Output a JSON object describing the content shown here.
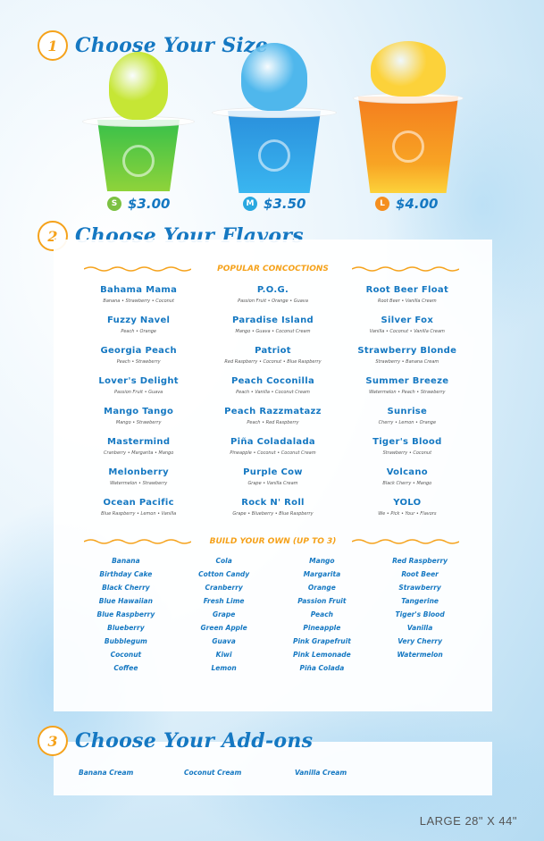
{
  "colors": {
    "accent": "#f5a21b",
    "brand": "#1578c2"
  },
  "sections": [
    {
      "number": "1",
      "title": "Choose Your Size"
    },
    {
      "number": "2",
      "title": "Choose Your Flavors"
    },
    {
      "number": "3",
      "title": "Choose Your Add-ons"
    }
  ],
  "sizes": [
    {
      "badge": "S",
      "price": "$3.00",
      "color": "#7cc142"
    },
    {
      "badge": "M",
      "price": "$3.50",
      "color": "#29a8e0"
    },
    {
      "badge": "L",
      "price": "$4.00",
      "color": "#f58f1f"
    }
  ],
  "popular": {
    "heading": "POPULAR CONCOCTIONS",
    "items": [
      {
        "name": "Bahama Mama",
        "desc": "Banana • Strawberry • Coconut"
      },
      {
        "name": "Fuzzy Navel",
        "desc": "Peach • Orange"
      },
      {
        "name": "Georgia Peach",
        "desc": "Peach • Strawberry"
      },
      {
        "name": "Lover's Delight",
        "desc": "Passion Fruit • Guava"
      },
      {
        "name": "Mango Tango",
        "desc": "Mango • Strawberry"
      },
      {
        "name": "Mastermind",
        "desc": "Cranberry • Margarita • Mango"
      },
      {
        "name": "Melonberry",
        "desc": "Watermelon • Strawberry"
      },
      {
        "name": "Ocean Pacific",
        "desc": "Blue Raspberry • Lemon • Vanilla"
      },
      {
        "name": "P.O.G.",
        "desc": "Passion Fruit • Orange • Guava"
      },
      {
        "name": "Paradise Island",
        "desc": "Mango • Guava • Coconut Cream"
      },
      {
        "name": "Patriot",
        "desc": "Red Raspberry • Coconut • Blue Raspberry"
      },
      {
        "name": "Peach Coconilla",
        "desc": "Peach • Vanilla • Coconut Cream"
      },
      {
        "name": "Peach Razzmatazz",
        "desc": "Peach • Red Raspberry"
      },
      {
        "name": "Piña Coladalada",
        "desc": "Pineapple • Coconut • Coconut Cream"
      },
      {
        "name": "Purple Cow",
        "desc": "Grape • Vanilla Cream"
      },
      {
        "name": "Rock N' Roll",
        "desc": "Grape • Blueberry • Blue Raspberry"
      },
      {
        "name": "Root Beer Float",
        "desc": "Root Beer • Vanilla Cream"
      },
      {
        "name": "Silver Fox",
        "desc": "Vanilla • Coconut • Vanilla Cream"
      },
      {
        "name": "Strawberry Blonde",
        "desc": "Strawberry • Banana Cream"
      },
      {
        "name": "Summer Breeze",
        "desc": "Watermelon • Peach • Strawberry"
      },
      {
        "name": "Sunrise",
        "desc": "Cherry • Lemon • Orange"
      },
      {
        "name": "Tiger's Blood",
        "desc": "Strawberry • Coconut"
      },
      {
        "name": "Volcano",
        "desc": "Black Cherry • Mango"
      },
      {
        "name": "YOLO",
        "desc": "We • Pick • Your • Flavors"
      }
    ]
  },
  "build": {
    "heading": "BUILD YOUR OWN (UP TO 3)",
    "flavors": [
      "Banana",
      "Birthday Cake",
      "Black Cherry",
      "Blue Hawaiian",
      "Blue Raspberry",
      "Blueberry",
      "Bubblegum",
      "Coconut",
      "Coffee",
      "Cola",
      "Cotton Candy",
      "Cranberry",
      "Fresh Lime",
      "Grape",
      "Green Apple",
      "Guava",
      "Kiwi",
      "Lemon",
      "Mango",
      "Margarita",
      "Orange",
      "Passion Fruit",
      "Peach",
      "Pineapple",
      "Pink Grapefruit",
      "Pink Lemonade",
      "Piña Colada",
      "Red Raspberry",
      "Root Beer",
      "Strawberry",
      "Tangerine",
      "Tiger's Blood",
      "Vanilla",
      "Very Cherry",
      "Watermelon"
    ]
  },
  "addons": [
    "Banana Cream",
    "Coconut Cream",
    "Vanilla Cream"
  ],
  "footer": "LARGE 28\" X 44\""
}
